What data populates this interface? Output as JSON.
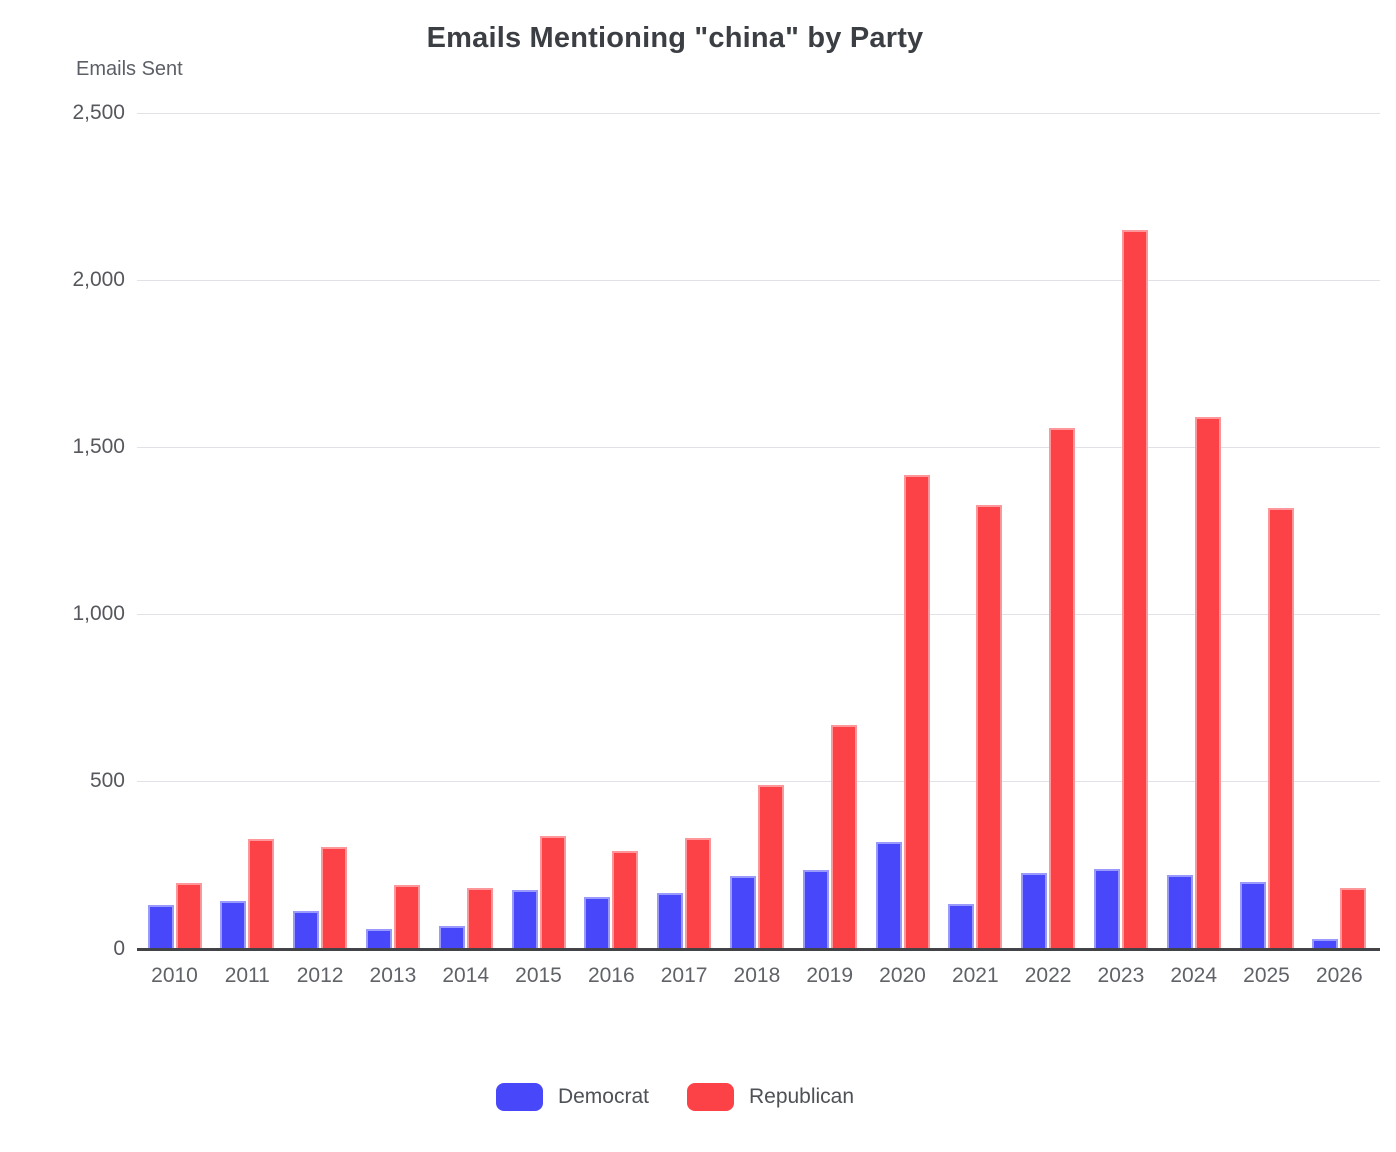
{
  "chart_data": {
    "type": "bar",
    "title": "Emails Mentioning \"china\" by Party",
    "ylabel": "Emails Sent",
    "xlabel": "",
    "ylim": [
      0,
      2500
    ],
    "ytick_interval": 500,
    "ytick_labels": [
      "0",
      "500",
      "1,000",
      "1,500",
      "2,000",
      "2,500"
    ],
    "grid": true,
    "legend_position": "bottom",
    "categories": [
      "2010",
      "2011",
      "2012",
      "2013",
      "2014",
      "2015",
      "2016",
      "2017",
      "2018",
      "2019",
      "2020",
      "2021",
      "2022",
      "2023",
      "2024",
      "2025",
      "2026"
    ],
    "series": [
      {
        "name": "Democrat",
        "color": "#4848fa",
        "values": [
          128,
          142,
          110,
          57,
          66,
          173,
          153,
          165,
          215,
          234,
          317,
          132,
          225,
          236,
          220,
          198,
          28
        ]
      },
      {
        "name": "Republican",
        "color": "#fc4246",
        "values": [
          196,
          326,
          301,
          188,
          180,
          335,
          291,
          329,
          487,
          667,
          1417,
          1327,
          1558,
          2151,
          1591,
          1317,
          180
        ]
      }
    ]
  },
  "legend": {
    "items": [
      {
        "label": "Democrat",
        "color": "#4848fa"
      },
      {
        "label": "Republican",
        "color": "#fc4246"
      }
    ]
  },
  "style_colors": {
    "gridline": "#e1e2e8",
    "axis_line": "#414347",
    "tick_text": "#56585d",
    "title_text": "#3b3e43"
  }
}
